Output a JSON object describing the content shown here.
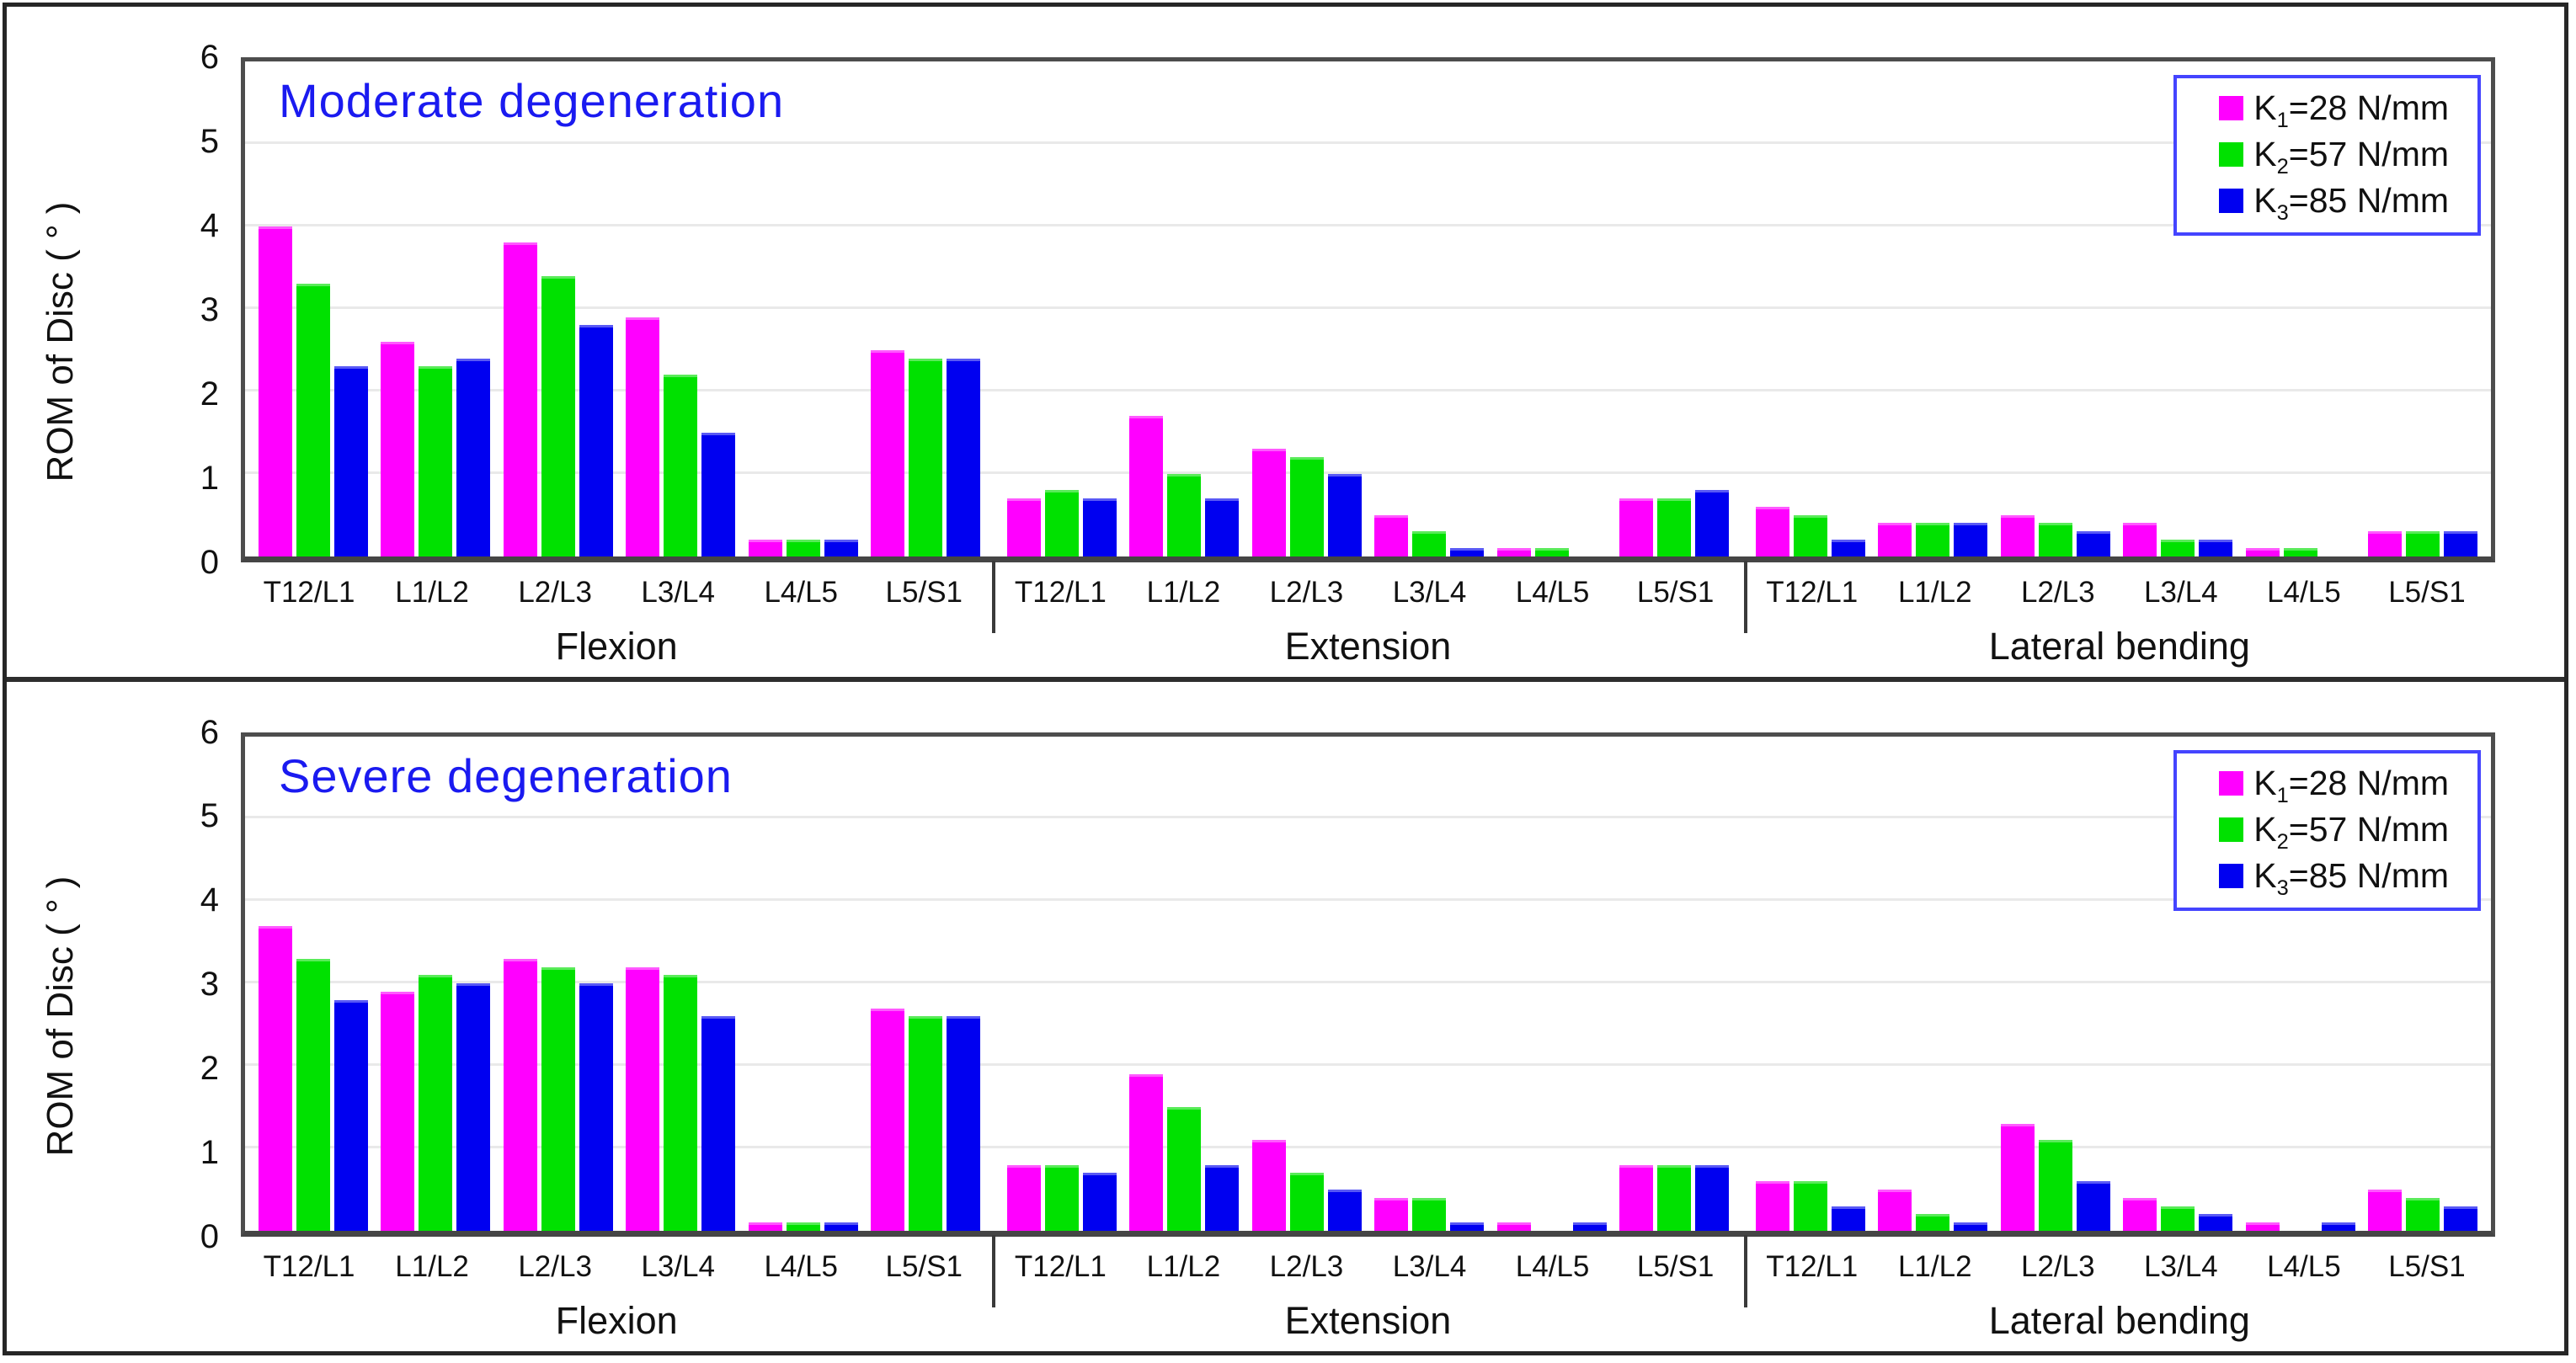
{
  "figure": {
    "ylabel": "ROM of Disc ( ° )",
    "y_ticks": [
      0,
      1,
      2,
      3,
      4,
      5,
      6
    ],
    "legend": [
      {
        "sym": "K",
        "sub": "1",
        "rest": "=28 N/mm",
        "color": "#ff00ff"
      },
      {
        "sym": "K",
        "sub": "2",
        "rest": "=57 N/mm",
        "color": "#00e100"
      },
      {
        "sym": "K",
        "sub": "3",
        "rest": "=85 N/mm",
        "color": "#0000f0"
      }
    ],
    "colors": {
      "series1": "#ff00ff",
      "series2": "#00e100",
      "series3": "#0000f0",
      "title_blue": "#1a1af0",
      "legend_border": "#4444ff",
      "frame": "#4d4d4d",
      "gridline": "#e9e9e9"
    }
  },
  "chart_data": [
    {
      "type": "bar",
      "title": "Moderate degeneration",
      "ylabel": "ROM of Disc ( ° )",
      "ylim": [
        0,
        6
      ],
      "y_ticks": [
        0,
        1,
        2,
        3,
        4,
        5,
        6
      ],
      "grid": true,
      "legend_position": "top-right",
      "groups": [
        "Flexion",
        "Extension",
        "Lateral bending"
      ],
      "categories": [
        "T12/L1",
        "L1/L2",
        "L2/L3",
        "L3/L4",
        "L4/L5",
        "L5/S1"
      ],
      "series": [
        {
          "name": "K1=28 N/mm",
          "color": "#ff00ff",
          "values": [
            [
              4.0,
              2.6,
              3.8,
              2.9,
              0.2,
              2.5
            ],
            [
              0.7,
              1.7,
              1.3,
              0.5,
              0.1,
              0.7
            ],
            [
              0.6,
              0.4,
              0.5,
              0.4,
              0.1,
              0.3
            ]
          ]
        },
        {
          "name": "K2=57 N/mm",
          "color": "#00e100",
          "values": [
            [
              3.3,
              2.3,
              3.4,
              2.2,
              0.2,
              2.4
            ],
            [
              0.8,
              1.0,
              1.2,
              0.3,
              0.1,
              0.7
            ],
            [
              0.5,
              0.4,
              0.4,
              0.2,
              0.1,
              0.3
            ]
          ]
        },
        {
          "name": "K3=85 N/mm",
          "color": "#0000f0",
          "values": [
            [
              2.3,
              2.4,
              2.8,
              1.5,
              0.2,
              2.4
            ],
            [
              0.7,
              0.7,
              1.0,
              0.1,
              0.0,
              0.8
            ],
            [
              0.2,
              0.4,
              0.3,
              0.2,
              0.0,
              0.3
            ]
          ]
        }
      ]
    },
    {
      "type": "bar",
      "title": "Severe degeneration",
      "ylabel": "ROM of Disc ( ° )",
      "ylim": [
        0,
        6
      ],
      "y_ticks": [
        0,
        1,
        2,
        3,
        4,
        5,
        6
      ],
      "grid": true,
      "legend_position": "top-right",
      "groups": [
        "Flexion",
        "Extension",
        "Lateral bending"
      ],
      "categories": [
        "T12/L1",
        "L1/L2",
        "L2/L3",
        "L3/L4",
        "L4/L5",
        "L5/S1"
      ],
      "series": [
        {
          "name": "K1=28 N/mm",
          "color": "#ff00ff",
          "values": [
            [
              3.7,
              2.9,
              3.3,
              3.2,
              0.1,
              2.7
            ],
            [
              0.8,
              1.9,
              1.1,
              0.4,
              0.1,
              0.8
            ],
            [
              0.6,
              0.5,
              1.3,
              0.4,
              0.1,
              0.5
            ]
          ]
        },
        {
          "name": "K2=57 N/mm",
          "color": "#00e100",
          "values": [
            [
              3.3,
              3.1,
              3.2,
              3.1,
              0.1,
              2.6
            ],
            [
              0.8,
              1.5,
              0.7,
              0.4,
              0.0,
              0.8
            ],
            [
              0.6,
              0.2,
              1.1,
              0.3,
              0.0,
              0.4
            ]
          ]
        },
        {
          "name": "K3=85 N/mm",
          "color": "#0000f0",
          "values": [
            [
              2.8,
              3.0,
              3.0,
              2.6,
              0.1,
              2.6
            ],
            [
              0.7,
              0.8,
              0.5,
              0.1,
              0.1,
              0.8
            ],
            [
              0.3,
              0.1,
              0.6,
              0.2,
              0.1,
              0.3
            ]
          ]
        }
      ]
    }
  ]
}
